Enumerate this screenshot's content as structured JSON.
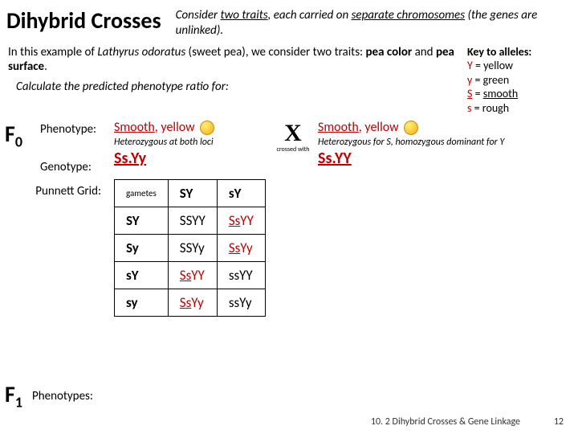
{
  "title": "Dihybrid Crosses",
  "subtitle_a": "Consider ",
  "subtitle_b": "two traits",
  "subtitle_c": ", each carried on ",
  "subtitle_d": "separate chromosomes",
  "subtitle_e": " (the genes are unlinked).",
  "intro_a": "In this example of ",
  "intro_b": "Lathyrus odoratus",
  "intro_c": " (sweet pea), we consider two traits: ",
  "intro_d": "pea color",
  "intro_e": " and ",
  "intro_f": "pea surface",
  "intro_g": ".",
  "calc": "Calculate the predicted phenotype ratio for:",
  "key_title": "Key to alleles:",
  "key1a": "Y",
  "key1b": " = yellow",
  "key2a": "y",
  "key2b": " = green",
  "key3a": "S",
  "key3b": " = ",
  "key3c": "smooth",
  "key4a": "s",
  "key4b": " = rough",
  "f0_label": "F",
  "f0_sub": "0",
  "lbl_pheno": "Phenotype:",
  "lbl_geno": "Genotype:",
  "p1_pheno_a": "Smooth",
  "p1_pheno_b": ", yellow",
  "p1_het": "Heterozygous at both loci",
  "p1_geno_a": "Ss",
  "p1_geno_b": ".",
  "p1_geno_c": "Yy",
  "crossX": "X",
  "crossed_with": "crossed with",
  "p2_pheno_a": "Smooth",
  "p2_pheno_b": ", yellow",
  "p2_het": "Heterozygous for S, homozygous dominant for Y",
  "p2_geno_a": "Ss",
  "p2_geno_b": ".",
  "p2_geno_c": "YY",
  "punnett_label": "Punnett Grid:",
  "gametes_label": "gametes",
  "col1": "SY",
  "col2": "sY",
  "r1": "SY",
  "c11": "SSYY",
  "c12a": "Ss",
  "c12b": "YY",
  "r2": "Sy",
  "c21": "SSYy",
  "c22a": "Ss",
  "c22b": "Yy",
  "r3": "sY",
  "c31a": "Ss",
  "c31b": "YY",
  "c32": "ssYY",
  "r4": "sy",
  "c41a": "Ss",
  "c41b": "Yy",
  "c42": "ssYy",
  "f1_label": "F",
  "f1_sub": "1",
  "f1_text": "Phenotypes:",
  "footer_text": "10. 2 Dihybrid Crosses & Gene Linkage",
  "footer_page": "12"
}
